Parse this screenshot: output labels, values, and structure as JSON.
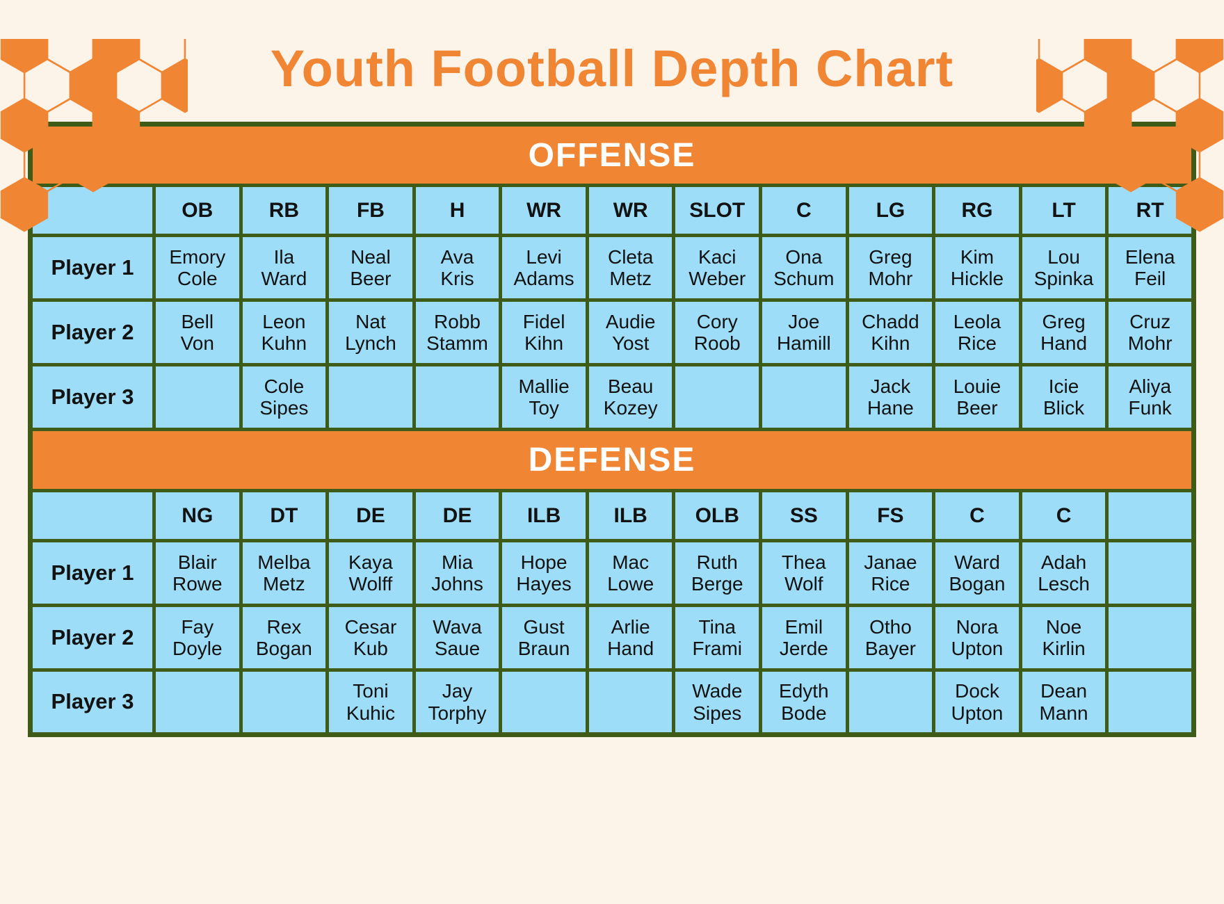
{
  "title": "Youth Football Depth Chart",
  "colors": {
    "orange": "#F08534",
    "cell_blue": "#9EDDF7",
    "border_green": "#3E5C18",
    "background": "#FCF3E9",
    "cell_text": "#121212",
    "banner_text": "#FFFFFF"
  },
  "decorations": {
    "top_left": "hexagon-honeycomb-pattern",
    "top_right": "hexagon-honeycomb-pattern"
  },
  "table": {
    "column_count": 13,
    "row_label_column_width": 178,
    "sections": [
      {
        "banner": "OFFENSE",
        "positions": [
          "OB",
          "RB",
          "FB",
          "H",
          "WR",
          "WR",
          "SLOT",
          "C",
          "LG",
          "RG",
          "LT",
          "RT"
        ],
        "rows": [
          {
            "label": "Player 1",
            "cells": [
              "Emory Cole",
              "Ila Ward",
              "Neal Beer",
              "Ava Kris",
              "Levi Adams",
              "Cleta Metz",
              "Kaci Weber",
              "Ona Schum",
              "Greg Mohr",
              "Kim Hickle",
              "Lou Spinka",
              "Elena Feil"
            ]
          },
          {
            "label": "Player 2",
            "cells": [
              "Bell Von",
              "Leon Kuhn",
              "Nat Lynch",
              "Robb Stamm",
              "Fidel Kihn",
              "Audie Yost",
              "Cory Roob",
              "Joe Hamill",
              "Chadd Kihn",
              "Leola Rice",
              "Greg Hand",
              "Cruz Mohr"
            ]
          },
          {
            "label": "Player 3",
            "cells": [
              "",
              "Cole Sipes",
              "",
              "",
              "Mallie Toy",
              "Beau Kozey",
              "",
              "",
              "Jack Hane",
              "Louie Beer",
              "Icie Blick",
              "Aliya Funk"
            ]
          }
        ]
      },
      {
        "banner": "DEFENSE",
        "positions": [
          "NG",
          "DT",
          "DE",
          "DE",
          "ILB",
          "ILB",
          "OLB",
          "SS",
          "FS",
          "C",
          "C",
          ""
        ],
        "rows": [
          {
            "label": "Player 1",
            "cells": [
              "Blair Rowe",
              "Melba Metz",
              "Kaya Wolff",
              "Mia Johns",
              "Hope Hayes",
              "Mac Lowe",
              "Ruth Berge",
              "Thea Wolf",
              "Janae Rice",
              "Ward Bogan",
              "Adah Lesch",
              ""
            ]
          },
          {
            "label": "Player 2",
            "cells": [
              "Fay Doyle",
              "Rex Bogan",
              "Cesar Kub",
              "Wava Saue",
              "Gust Braun",
              "Arlie Hand",
              "Tina Frami",
              "Emil Jerde",
              "Otho Bayer",
              "Nora Upton",
              "Noe Kirlin",
              ""
            ]
          },
          {
            "label": "Player 3",
            "cells": [
              "",
              "",
              "Toni Kuhic",
              "Jay Torphy",
              "",
              "",
              "Wade Sipes",
              "Edyth Bode",
              "",
              "Dock Upton",
              "Dean Mann",
              ""
            ]
          }
        ]
      }
    ]
  }
}
